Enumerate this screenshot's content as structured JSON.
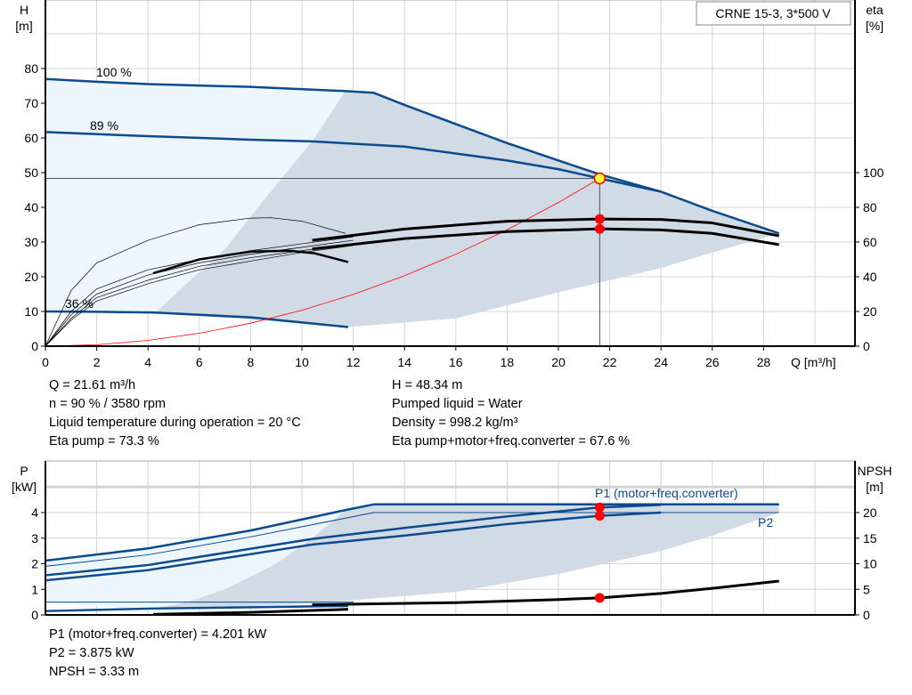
{
  "chart_data": [
    {
      "type": "line",
      "title": "CRNE 15-3, 3*500 V",
      "xlabel": "Q [m³/h]",
      "ylabel": "H [m]",
      "y2label": "eta [%]",
      "xlim": [
        0,
        31.5
      ],
      "ylim": [
        0,
        100
      ],
      "y2lim": [
        0,
        200
      ],
      "xticks": [
        0,
        2,
        4,
        6,
        8,
        10,
        12,
        14,
        16,
        18,
        20,
        22,
        24,
        26,
        28
      ],
      "yticks": [
        0,
        10,
        20,
        30,
        40,
        50,
        60,
        70,
        80
      ],
      "y2ticks": [
        0,
        20,
        40,
        60,
        80,
        100
      ],
      "grid": true,
      "colors": {
        "curve": "#0b4a8b",
        "area_dark": "#d0dbe6",
        "area_light": "#eef6fd",
        "system": "#ff0000",
        "eta": "#000000",
        "marker": "#ff0000",
        "op_marker": "#ffff33"
      },
      "annotations": [
        "100 %",
        "89 %",
        "36 %"
      ],
      "areas": {
        "light": {
          "x": [
            0,
            2,
            4,
            8,
            11.7,
            10.4,
            8.5,
            7,
            5.5,
            4.3,
            0
          ],
          "y": [
            77,
            76.2,
            75.5,
            74.7,
            73.5,
            59,
            42,
            28,
            18,
            9.7,
            10
          ]
        },
        "dark": {
          "x": [
            11.7,
            12.8,
            14,
            16,
            18,
            20,
            21.6,
            24,
            26,
            28.6,
            28.6,
            26,
            24,
            22,
            20,
            16,
            11.8,
            4.3,
            5.5,
            7,
            8.5,
            10.4
          ],
          "y": [
            73.5,
            73,
            69.5,
            64,
            58.5,
            53.5,
            49.5,
            44.5,
            39,
            32.5,
            32.5,
            27,
            22.5,
            19,
            15.5,
            8,
            5.5,
            9.7,
            18,
            28,
            42,
            59
          ]
        }
      },
      "series": [
        {
          "axis": "H",
          "style": "curve",
          "x": [
            0,
            2,
            4,
            8,
            11.7,
            12.8,
            14,
            16,
            18,
            20,
            21.61,
            24,
            26,
            28.6
          ],
          "y": [
            77,
            76.2,
            75.5,
            74.7,
            73.5,
            73,
            69.5,
            64,
            58.5,
            53.5,
            49.5,
            44.5,
            39,
            32.5
          ]
        },
        {
          "axis": "H",
          "style": "curve",
          "x": [
            0,
            4,
            8,
            10.4,
            14,
            18,
            20,
            21.61,
            24
          ],
          "y": [
            61.7,
            60.5,
            59.5,
            59,
            57.5,
            53.5,
            51,
            48.34,
            44.5
          ]
        },
        {
          "axis": "H",
          "style": "curve",
          "x": [
            0,
            2,
            4.2,
            8,
            11.8
          ],
          "y": [
            10,
            9.9,
            9.7,
            8.3,
            5.5
          ]
        },
        {
          "axis": "H",
          "style": "system",
          "x": [
            0,
            2,
            4,
            6,
            8,
            10,
            12,
            14,
            16,
            18,
            20,
            21.61
          ],
          "y": [
            0,
            0.41,
            1.66,
            3.72,
            6.62,
            10.35,
            14.9,
            20.28,
            26.49,
            33.53,
            41.4,
            48.34
          ]
        },
        {
          "axis": "eta",
          "style": "eta",
          "x": [
            10.4,
            14,
            18,
            21.61,
            24,
            26,
            28.6
          ],
          "y": [
            61,
            67.5,
            72,
            73.3,
            73,
            71,
            63.6
          ]
        },
        {
          "axis": "eta",
          "style": "eta",
          "x": [
            10.4,
            14,
            18,
            21.61,
            24,
            26,
            28.6
          ],
          "y": [
            56,
            62,
            66,
            67.6,
            67,
            65,
            58.5
          ]
        },
        {
          "axis": "eta",
          "style": "eta-thin",
          "x": [
            0,
            1,
            2,
            4,
            6,
            8,
            8.8,
            10,
            11.7
          ],
          "y": [
            0,
            32,
            48,
            61,
            70,
            73.8,
            74,
            72,
            65
          ]
        },
        {
          "axis": "eta",
          "style": "eta-thick",
          "x": [
            4.2,
            6,
            8,
            9.5,
            10.5,
            11.8
          ],
          "y": [
            42,
            50,
            54.5,
            55,
            53.5,
            48.5
          ]
        },
        {
          "axis": "eta",
          "style": "eta-thin",
          "x": [
            0,
            1,
            2,
            4,
            6,
            8,
            10,
            12
          ],
          "y": [
            0,
            20,
            33,
            44,
            50,
            55,
            59,
            63
          ]
        },
        {
          "axis": "eta",
          "style": "eta-thin",
          "x": [
            0,
            1,
            2,
            4,
            6,
            8,
            10,
            12
          ],
          "y": [
            0,
            18,
            30,
            41,
            48,
            53,
            57,
            61
          ]
        },
        {
          "axis": "eta",
          "style": "eta-thin",
          "x": [
            0,
            1,
            2,
            4,
            6,
            8,
            10,
            12
          ],
          "y": [
            0,
            16,
            28,
            38,
            46,
            51,
            55,
            59
          ]
        },
        {
          "axis": "eta",
          "style": "eta-thin",
          "x": [
            0,
            1,
            2,
            4,
            6,
            8,
            10,
            12
          ],
          "y": [
            0,
            15,
            26,
            36,
            44,
            49,
            54,
            58
          ]
        }
      ],
      "operating_point": {
        "Q": 21.61,
        "H": 48.34,
        "eta_pump": 73.3,
        "eta_total": 67.6
      }
    },
    {
      "type": "line",
      "xlabel": "",
      "ylabel": "P [kW]",
      "y2label": "NPSH [m]",
      "xlim": [
        0,
        31.5
      ],
      "ylim": [
        0,
        6
      ],
      "y2lim": [
        0,
        30
      ],
      "yticks": [
        0,
        1,
        2,
        3,
        4
      ],
      "y2ticks": [
        0,
        5,
        10,
        15,
        20
      ],
      "grid": true,
      "legend": [
        "P1 (motor+freq.converter)",
        "P2"
      ],
      "areas": {
        "light": {
          "x": [
            0,
            4,
            8,
            11.7,
            10.4,
            9,
            7,
            5.5,
            4,
            0
          ],
          "y": [
            2.12,
            2.6,
            3.3,
            4.1,
            3.0,
            2.0,
            1.0,
            0.5,
            0.2,
            0.5
          ]
        },
        "dark": {
          "x": [
            11.7,
            12.8,
            28.6,
            28.6,
            26,
            24,
            20,
            16,
            10.4,
            4,
            5.5,
            7,
            9,
            10.4
          ],
          "y": [
            4.1,
            4.32,
            4.32,
            4.0,
            3.1,
            2.5,
            1.6,
            0.9,
            0.45,
            0.2,
            0.5,
            1.0,
            2.0,
            3.0
          ]
        }
      },
      "series": [
        {
          "axis": "P",
          "style": "curve",
          "x": [
            0,
            4,
            8,
            11.7,
            12.8,
            28.6
          ],
          "y": [
            2.12,
            2.6,
            3.3,
            4.1,
            4.32,
            4.32
          ]
        },
        {
          "axis": "P",
          "style": "curve-thin",
          "x": [
            0,
            4,
            8,
            12.8,
            28.6
          ],
          "y": [
            1.9,
            2.35,
            3.05,
            4.0,
            4.0
          ]
        },
        {
          "axis": "P",
          "style": "curve",
          "x": [
            0,
            4,
            10.4,
            14,
            18,
            21.61,
            24
          ],
          "y": [
            1.55,
            1.95,
            2.97,
            3.4,
            3.85,
            4.201,
            4.3
          ]
        },
        {
          "axis": "P",
          "style": "curve",
          "x": [
            0,
            4,
            10.4,
            14,
            18,
            21.61,
            24
          ],
          "y": [
            1.35,
            1.75,
            2.75,
            3.1,
            3.55,
            3.875,
            4.0
          ]
        },
        {
          "axis": "P",
          "style": "curve-thin",
          "x": [
            0,
            12
          ],
          "y": [
            0.5,
            0.5
          ]
        },
        {
          "axis": "P",
          "style": "curve",
          "x": [
            0,
            4.2,
            11.8
          ],
          "y": [
            0.15,
            0.25,
            0.35
          ]
        },
        {
          "axis": "NPSH",
          "style": "npsh",
          "x": [
            4.2,
            8,
            11.8
          ],
          "y": [
            0.1,
            0.5,
            1.1
          ]
        },
        {
          "axis": "NPSH",
          "style": "npsh",
          "x": [
            10.4,
            12,
            16,
            20,
            21.61,
            24,
            26,
            28.6
          ],
          "y": [
            2.0,
            2.1,
            2.4,
            3.0,
            3.33,
            4.2,
            5.2,
            6.6
          ]
        }
      ],
      "operating_point": {
        "Q": 21.61,
        "P1": 4.201,
        "P2": 3.875,
        "NPSH": 3.33
      }
    }
  ],
  "info_top": {
    "left": [
      "Q = 21.61 m³/h",
      "n = 90 % / 3580 rpm",
      "Liquid temperature during operation = 20 °C",
      "Eta pump = 73.3 %"
    ],
    "right": [
      "H = 48.34 m",
      "Pumped liquid = Water",
      "Density = 998.2 kg/m³",
      "Eta pump+motor+freq.converter = 67.6 %"
    ]
  },
  "info_bottom": [
    "P1 (motor+freq.converter) = 4.201 kW",
    "P2 = 3.875 kW",
    "NPSH = 3.33 m"
  ]
}
